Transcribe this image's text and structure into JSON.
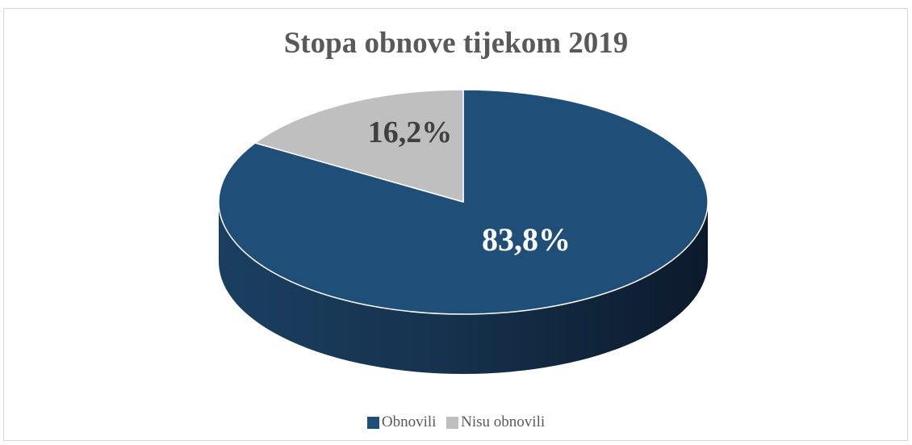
{
  "chart_data": {
    "type": "pie",
    "title": "Stopa obnove tijekom 2019",
    "series": [
      {
        "name": "Obnovili",
        "value": 83.8,
        "label": "83,8%",
        "color": "#1f4e79"
      },
      {
        "name": "Nisu obnovili",
        "value": 16.2,
        "label": "16,2%",
        "color": "#bfbfbf"
      }
    ],
    "legend_position": "bottom",
    "style": "3d"
  }
}
